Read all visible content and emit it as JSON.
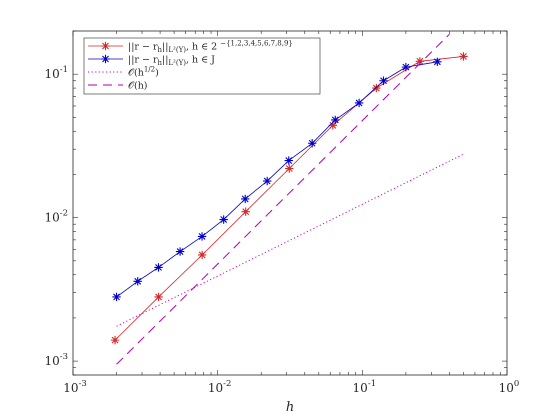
{
  "chart_data": {
    "type": "line",
    "xscale": "log",
    "yscale": "log",
    "xlim": [
      0.001,
      1
    ],
    "ylim": [
      0.0008,
      0.2
    ],
    "xlabel": "h",
    "ylabel": "",
    "title": "",
    "grid": false,
    "legend_position": "top-left",
    "x_tick_labels": [
      {
        "value": 0.001,
        "base": "10",
        "exp": "-3"
      },
      {
        "value": 0.01,
        "base": "10",
        "exp": "-2"
      },
      {
        "value": 0.1,
        "base": "10",
        "exp": "-1"
      },
      {
        "value": 1,
        "base": "10",
        "exp": "0"
      }
    ],
    "y_tick_labels": [
      {
        "value": 0.001,
        "base": "10",
        "exp": "-3"
      },
      {
        "value": 0.01,
        "base": "10",
        "exp": "-2"
      },
      {
        "value": 0.1,
        "base": "10",
        "exp": "-1"
      }
    ],
    "series": [
      {
        "name": "||r − r_h||_{L²(Y)}, h ∈ 2^{−{1,2,3,4,5,6,7,8,9}}",
        "legend_main": "||r − r",
        "legend_sub1": "h",
        "legend_mid": "||",
        "legend_sub2": "L²(Y)",
        "legend_rest": ", h ∈ 2",
        "legend_sup": "−{1,2,3,4,5,6,7,8,9}",
        "color": "#d62728",
        "style": "solid",
        "marker": "asterisk",
        "x": [
          0.5,
          0.25,
          0.125,
          0.0625,
          0.03125,
          0.015625,
          0.0078125,
          0.00390625,
          0.001953125
        ],
        "y": [
          0.133,
          0.123,
          0.08,
          0.044,
          0.022,
          0.011,
          0.0055,
          0.0028,
          0.0014
        ]
      },
      {
        "name": "||r − r_h||_{L²(Y)}, h ∈ J",
        "legend_main": "||r − r",
        "legend_sub1": "h",
        "legend_mid": "||",
        "legend_sub2": "L²(Y)",
        "legend_rest": ", h ∈ J",
        "legend_sup": "",
        "color": "#0000cd",
        "style": "solid",
        "marker": "asterisk",
        "x": [
          0.33,
          0.2,
          0.14,
          0.095,
          0.065,
          0.045,
          0.031,
          0.022,
          0.0155,
          0.011,
          0.0078,
          0.0055,
          0.0039,
          0.0028,
          0.002
        ],
        "y": [
          0.122,
          0.112,
          0.09,
          0.063,
          0.048,
          0.033,
          0.025,
          0.018,
          0.0135,
          0.0097,
          0.0074,
          0.0058,
          0.0045,
          0.0036,
          0.0028
        ]
      },
      {
        "name": "O(h^{1/2})",
        "legend_main": "𝒪(h",
        "legend_sup": "1/2",
        "legend_rest": ")",
        "color": "#d400d4",
        "style": "dotted",
        "marker": "none",
        "x": [
          0.002,
          0.5
        ],
        "y": [
          0.00175,
          0.0277
        ]
      },
      {
        "name": "O(h)",
        "legend_main": "𝒪(h)",
        "legend_sup": "",
        "legend_rest": "",
        "color": "#b000b0",
        "style": "dashed",
        "marker": "none",
        "x": [
          0.002,
          0.4
        ],
        "y": [
          0.00095,
          0.19
        ]
      }
    ]
  }
}
